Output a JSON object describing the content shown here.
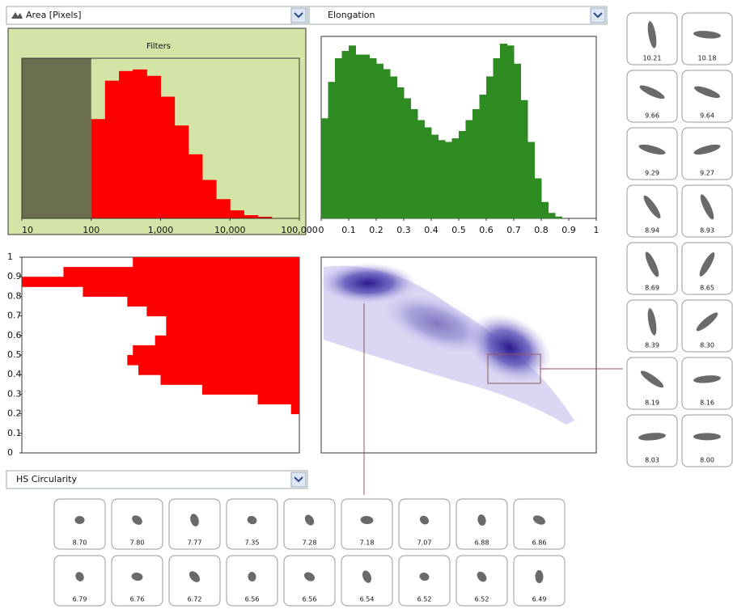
{
  "dropdowns": {
    "top_left": "Area [Pixels]",
    "top_right": "Elongation",
    "bottom_left": "HS Circularity"
  },
  "chart_data": [
    {
      "type": "histogram",
      "title": "Filters",
      "xscale": "log",
      "xlim": [
        10,
        100000
      ],
      "xticks": [
        10,
        100,
        {
          "value": 1000,
          "label": "1,000"
        },
        {
          "value": 10000,
          "label": "10,000"
        },
        {
          "value": 100000,
          "label": "100,000"
        }
      ],
      "filter_min": 100,
      "ylim": [
        0,
        100
      ],
      "color": "#ff0000",
      "bins": [
        100,
        158,
        251,
        398,
        631,
        1000,
        1585,
        2512,
        3981,
        6310,
        10000,
        15849,
        25119,
        39811,
        63096,
        100000
      ],
      "values": [
        62,
        86,
        92,
        93,
        89,
        76,
        58,
        40,
        24,
        12,
        5,
        2,
        1,
        0,
        0
      ]
    },
    {
      "type": "histogram",
      "xlim": [
        0,
        1
      ],
      "xticks": [
        0,
        0.1,
        0.2,
        0.3,
        0.4,
        0.5,
        0.6,
        0.7,
        0.8,
        0.9,
        1
      ],
      "ylim": [
        0,
        100
      ],
      "color": "#2e8b22",
      "bins": [
        0,
        0.025,
        0.05,
        0.075,
        0.1,
        0.125,
        0.15,
        0.175,
        0.2,
        0.225,
        0.25,
        0.275,
        0.3,
        0.325,
        0.35,
        0.375,
        0.4,
        0.425,
        0.45,
        0.475,
        0.5,
        0.525,
        0.55,
        0.575,
        0.6,
        0.625,
        0.65,
        0.675,
        0.7,
        0.725,
        0.75,
        0.775,
        0.8,
        0.825,
        0.85,
        0.875,
        0.9,
        0.925,
        0.95,
        0.975,
        1
      ],
      "values": [
        55,
        75,
        88,
        92,
        95,
        90,
        90,
        88,
        85,
        82,
        78,
        72,
        66,
        60,
        54,
        50,
        46,
        43,
        42,
        44,
        48,
        54,
        60,
        68,
        78,
        88,
        96,
        95,
        85,
        65,
        42,
        22,
        9,
        3,
        1,
        0,
        0,
        0,
        0,
        0
      ]
    },
    {
      "type": "histogram",
      "orientation": "horizontal",
      "ylim": [
        0,
        1
      ],
      "yticks": [
        0,
        0.1,
        0.2,
        0.3,
        0.4,
        0.5,
        0.6,
        0.7,
        0.8,
        0.9,
        1
      ],
      "xlim": [
        0,
        100
      ],
      "color": "#ff0000",
      "bins": [
        0.2,
        0.25,
        0.3,
        0.35,
        0.4,
        0.45,
        0.5,
        0.55,
        0.6,
        0.65,
        0.7,
        0.75,
        0.8,
        0.85,
        0.9,
        0.95,
        1
      ],
      "values": [
        3,
        15,
        35,
        50,
        58,
        62,
        60,
        52,
        48,
        48,
        55,
        62,
        78,
        100,
        85,
        60
      ]
    }
  ],
  "thumbnails": {
    "right": [
      "10.21",
      "10.18",
      "9.66",
      "9.64",
      "9.29",
      "9.27",
      "8.94",
      "8.93",
      "8.69",
      "8.65",
      "8.39",
      "8.30",
      "8.19",
      "8.16",
      "8.03",
      "8.00"
    ],
    "bottom": [
      "8.70",
      "7.80",
      "7.77",
      "7.35",
      "7.28",
      "7.18",
      "7.07",
      "6.88",
      "6.86",
      "6.79",
      "6.76",
      "6.72",
      "6.56",
      "6.56",
      "6.54",
      "6.52",
      "6.52",
      "6.49"
    ]
  }
}
